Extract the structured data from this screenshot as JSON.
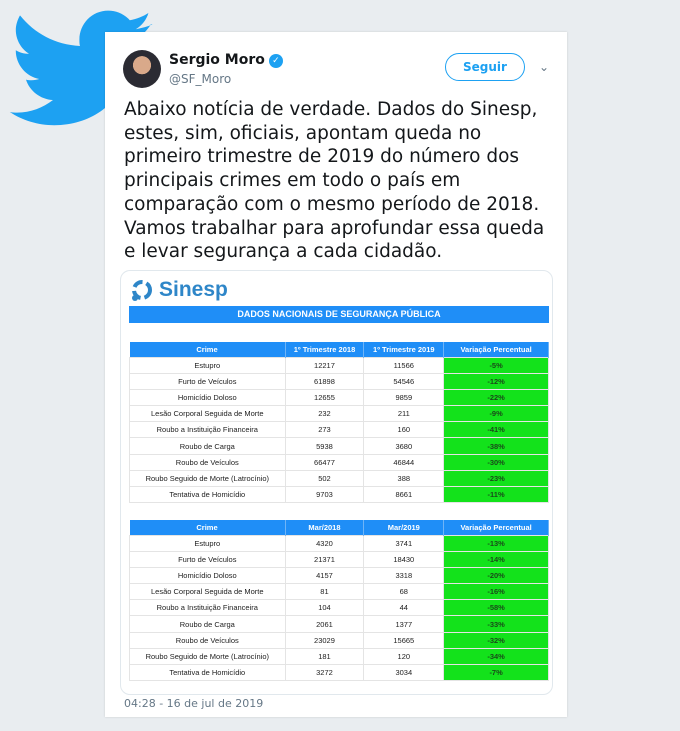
{
  "tweet": {
    "name": "Sergio Moro",
    "handle": "@SF_Moro",
    "follow_label": "Seguir",
    "text": "Abaixo notícia de verdade. Dados do Sinesp, estes, sim, oficiais, apontam queda no primeiro trimestre de 2019 do número dos principais crimes em todo o país em comparação com o mesmo período de 2018. Vamos trabalhar para aprofundar essa queda e levar segurança a cada cidadão.",
    "timestamp": "04:28 - 16 de jul de 2019"
  },
  "image": {
    "logo": "Sinesp",
    "banner": "DADOS NACIONAIS DE SEGURANÇA PÚBLICA",
    "tables": [
      {
        "headers": [
          "Crime",
          "1º  Trimestre 2018",
          "1º  Trimestre 2019",
          "Variação Percentual"
        ],
        "rows": [
          [
            "Estupro",
            "12217",
            "11566",
            "-5%"
          ],
          [
            "Furto de Veículos",
            "61898",
            "54546",
            "-12%"
          ],
          [
            "Homicídio Doloso",
            "12655",
            "9859",
            "-22%"
          ],
          [
            "Lesão Corporal Seguida de Morte",
            "232",
            "211",
            "-9%"
          ],
          [
            "Roubo a Instituição Financeira",
            "273",
            "160",
            "-41%"
          ],
          [
            "Roubo de Carga",
            "5938",
            "3680",
            "-38%"
          ],
          [
            "Roubo de Veículos",
            "66477",
            "46844",
            "-30%"
          ],
          [
            "Roubo Seguido de Morte (Latrocínio)",
            "502",
            "388",
            "-23%"
          ],
          [
            "Tentativa de Homicídio",
            "9703",
            "8661",
            "-11%"
          ]
        ]
      },
      {
        "headers": [
          "Crime",
          "Mar/2018",
          "Mar/2019",
          "Variação Percentual"
        ],
        "rows": [
          [
            "Estupro",
            "4320",
            "3741",
            "-13%"
          ],
          [
            "Furto de Veículos",
            "21371",
            "18430",
            "-14%"
          ],
          [
            "Homicídio Doloso",
            "4157",
            "3318",
            "-20%"
          ],
          [
            "Lesão Corporal Seguida de Morte",
            "81",
            "68",
            "-16%"
          ],
          [
            "Roubo a Instituição Financeira",
            "104",
            "44",
            "-58%"
          ],
          [
            "Roubo de Carga",
            "2061",
            "1377",
            "-33%"
          ],
          [
            "Roubo de Veículos",
            "23029",
            "15665",
            "-32%"
          ],
          [
            "Roubo Seguido de Morte (Latrocínio)",
            "181",
            "120",
            "-34%"
          ],
          [
            "Tentativa de Homicídio",
            "3272",
            "3034",
            "-7%"
          ]
        ]
      }
    ]
  },
  "colors": {
    "twitter_blue": "#1da1f2",
    "table_header": "#1f8ef7",
    "decrease_green": "#13e21b"
  }
}
